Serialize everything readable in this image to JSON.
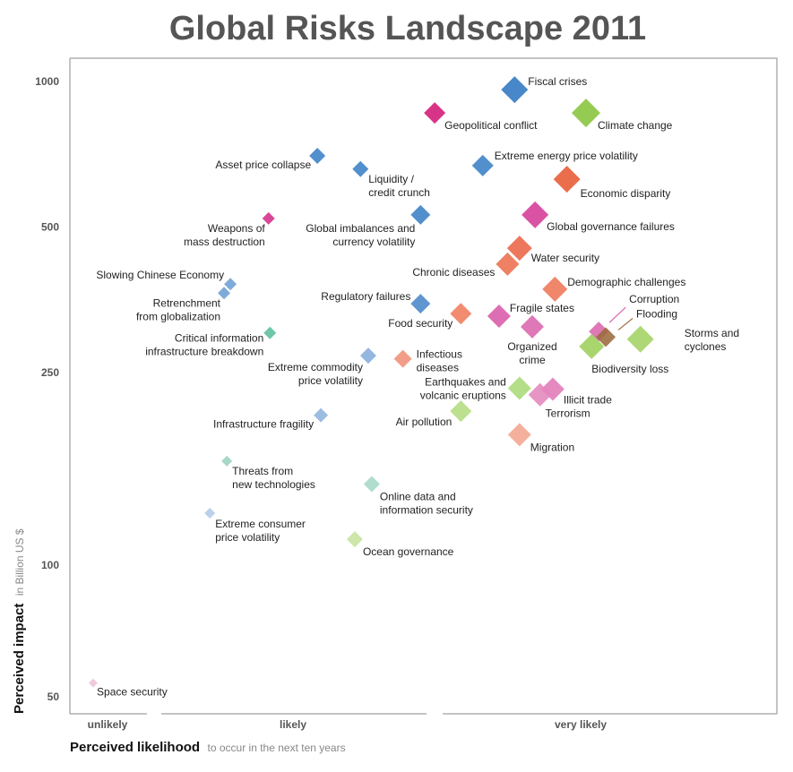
{
  "chart_data": {
    "type": "scatter",
    "title": "Global Risks Landscape 2011",
    "xlabel": "Perceived likelihood",
    "xlabel_note": "to occur in the next ten years",
    "ylabel": "Perceived impact",
    "ylabel_note": "in Billion US $",
    "yscale": "log",
    "ylim": [
      45,
      1150
    ],
    "xlim": [
      0,
      100
    ],
    "yticks": [
      "1000",
      "500",
      "250",
      "100",
      "50"
    ],
    "ytick_values": [
      1000,
      500,
      250,
      100,
      50
    ],
    "xcategories": [
      "unlikely",
      "likely",
      "very likely"
    ],
    "grid": false,
    "points": [
      {
        "label": "Fiscal crises",
        "x": 62.9,
        "y": 962,
        "size": 15,
        "color": "#2f76c2"
      },
      {
        "label": "Geopolitical conflict",
        "x": 51.6,
        "y": 861,
        "size": 12,
        "color": "#d21878"
      },
      {
        "label": "Climate change",
        "x": 73.0,
        "y": 861,
        "size": 16,
        "color": "#86c43a"
      },
      {
        "label": "Asset price collapse",
        "x": 35.0,
        "y": 702,
        "size": 9,
        "color": "#3a80c6"
      },
      {
        "label": "Liquidity /\ncredit crunch",
        "x": 41.1,
        "y": 659,
        "size": 9,
        "color": "#3a80c6"
      },
      {
        "label": "Extreme energy price volatility",
        "x": 58.4,
        "y": 670,
        "size": 12,
        "color": "#3a80c6"
      },
      {
        "label": "Economic disparity",
        "x": 70.3,
        "y": 628,
        "size": 15,
        "color": "#e85a33"
      },
      {
        "label": "Weapons of\nmass destruction",
        "x": 28.1,
        "y": 521,
        "size": 7,
        "color": "#d42f8a"
      },
      {
        "label": "Global imbalances and\ncurrency volatility",
        "x": 49.6,
        "y": 530,
        "size": 11,
        "color": "#3a80c6"
      },
      {
        "label": "Global governance failures",
        "x": 65.8,
        "y": 530,
        "size": 15,
        "color": "#d43a96"
      },
      {
        "label": "Water security",
        "x": 63.6,
        "y": 452,
        "size": 14,
        "color": "#ea6446"
      },
      {
        "label": "Chronic diseases",
        "x": 61.9,
        "y": 419,
        "size": 13,
        "color": "#ec704f"
      },
      {
        "label": "Demographic challenges",
        "x": 68.6,
        "y": 372,
        "size": 14,
        "color": "#ee7655"
      },
      {
        "label": "Slowing Chinese Economy",
        "x": 22.7,
        "y": 381,
        "size": 7,
        "color": "#6d9fd4"
      },
      {
        "label": "Retrenchment\nfrom globalization",
        "x": 21.8,
        "y": 365,
        "size": 7,
        "color": "#6d9fd4"
      },
      {
        "label": "Regulatory failures",
        "x": 49.6,
        "y": 347,
        "size": 11,
        "color": "#4a88c8"
      },
      {
        "label": "Food security",
        "x": 55.3,
        "y": 331,
        "size": 12,
        "color": "#ef7c5c"
      },
      {
        "label": "Fragile states",
        "x": 60.7,
        "y": 327,
        "size": 13,
        "color": "#d95aa8"
      },
      {
        "label": "Organized\ncrime",
        "x": 65.4,
        "y": 311,
        "size": 13,
        "color": "#d965ad"
      },
      {
        "label": "Corruption",
        "x": 74.8,
        "y": 304,
        "size": 11,
        "color": "#d965ad"
      },
      {
        "label": "Flooding",
        "x": 75.8,
        "y": 296,
        "size": 11,
        "color": "#9c6a3c"
      },
      {
        "label": "Biodiversity loss",
        "x": 73.8,
        "y": 283,
        "size": 14,
        "color": "#9ccf5a"
      },
      {
        "label": "Storms and\ncyclones",
        "x": 80.7,
        "y": 293,
        "size": 15,
        "color": "#a3d263"
      },
      {
        "label": "Critical information\ninfrastructure breakdown",
        "x": 28.3,
        "y": 302,
        "size": 7,
        "color": "#5bbf9e"
      },
      {
        "label": "Extreme commodity\nprice volatility",
        "x": 42.2,
        "y": 271,
        "size": 9,
        "color": "#86acdc"
      },
      {
        "label": "Infectious\ndiseases",
        "x": 47.1,
        "y": 267,
        "size": 10,
        "color": "#f08f76"
      },
      {
        "label": "Earthquakes and\nvolcanic eruptions",
        "x": 63.6,
        "y": 232,
        "size": 13,
        "color": "#abd977"
      },
      {
        "label": "Illicit trade",
        "x": 68.3,
        "y": 231,
        "size": 13,
        "color": "#e07ab8"
      },
      {
        "label": "Terrorism",
        "x": 66.5,
        "y": 225,
        "size": 13,
        "color": "#e486bd"
      },
      {
        "label": "Air pollution",
        "x": 55.3,
        "y": 208,
        "size": 12,
        "color": "#b3dc7f"
      },
      {
        "label": "Infrastructure fragility",
        "x": 35.5,
        "y": 204,
        "size": 8,
        "color": "#8fb3dd"
      },
      {
        "label": "Migration",
        "x": 63.6,
        "y": 186,
        "size": 13,
        "color": "#f4a590"
      },
      {
        "label": "Threats from\nnew technologies",
        "x": 22.2,
        "y": 164,
        "size": 6,
        "color": "#9bd3bf"
      },
      {
        "label": "Online data and\ninformation security",
        "x": 42.7,
        "y": 147,
        "size": 9,
        "color": "#a5d8c6"
      },
      {
        "label": "Extreme consumer\nprice volatility",
        "x": 19.8,
        "y": 128,
        "size": 6,
        "color": "#b3c9e8"
      },
      {
        "label": "Ocean governance",
        "x": 40.3,
        "y": 113,
        "size": 9,
        "color": "#c6e39e"
      },
      {
        "label": "Space security",
        "x": 3.3,
        "y": 57,
        "size": 5,
        "color": "#efc3d8"
      }
    ]
  }
}
